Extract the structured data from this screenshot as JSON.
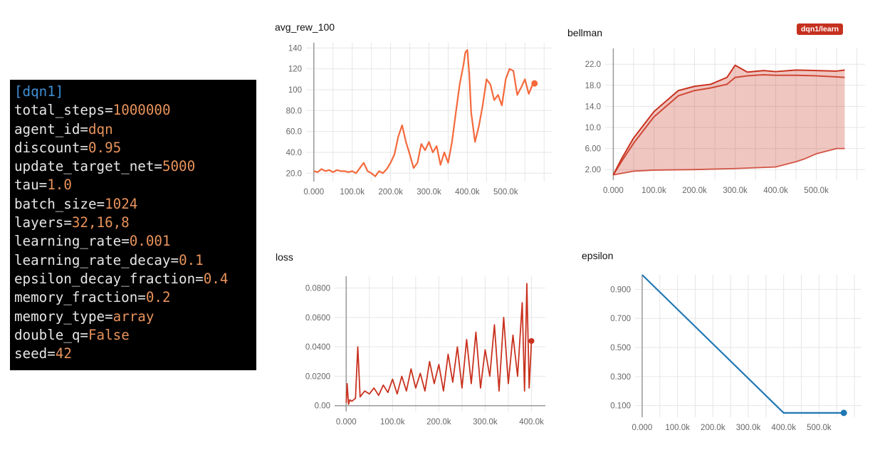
{
  "config": {
    "section": "[dqn1]",
    "params": [
      {
        "key": "total_steps",
        "value": "1000000"
      },
      {
        "key": "agent_id",
        "value": "dqn"
      },
      {
        "key": "discount",
        "value": "0.95"
      },
      {
        "key": "update_target_net",
        "value": "5000"
      },
      {
        "key": "tau",
        "value": "1.0"
      },
      {
        "key": "batch_size",
        "value": "1024"
      },
      {
        "key": "layers",
        "value": "32,16,8"
      },
      {
        "key": "learning_rate",
        "value": "0.001"
      },
      {
        "key": "learning_rate_decay",
        "value": "0.1"
      },
      {
        "key": "epsilon_decay_fraction",
        "value": "0.4"
      },
      {
        "key": "memory_fraction",
        "value": "0.2"
      },
      {
        "key": "memory_type",
        "value": "array"
      },
      {
        "key": "double_q",
        "value": "False"
      },
      {
        "key": "seed",
        "value": "42"
      }
    ]
  },
  "run_tag": "dqn1/learn",
  "colors": {
    "reward": "#f4693c",
    "bellman": "#c9321f",
    "loss": "#c9321f",
    "epsilon": "#1f77b4",
    "tag_bg": "#c5311f"
  },
  "chart_data": [
    {
      "id": "avg_rew_100",
      "type": "line",
      "title": "avg_rew_100",
      "xlim": [
        -20000,
        620000
      ],
      "ylim": [
        12,
        145
      ],
      "xticks": [
        0,
        100000,
        200000,
        300000,
        400000,
        500000
      ],
      "xticklabels": [
        "0.000",
        "100.0k",
        "200.0k",
        "300.0k",
        "400.0k",
        "500.0k"
      ],
      "yticks": [
        20,
        40,
        60,
        80,
        100,
        120,
        140
      ],
      "yticklabels": [
        "20.0",
        "40.0",
        "60.0",
        "80.0",
        "100",
        "120",
        "140"
      ],
      "series": [
        {
          "x": [
            0,
            10000,
            20000,
            30000,
            40000,
            50000,
            60000,
            70000,
            80000,
            90000,
            100000,
            110000,
            120000,
            130000,
            140000,
            150000,
            160000,
            170000,
            180000,
            190000,
            200000,
            210000,
            220000,
            230000,
            240000,
            250000,
            260000,
            270000,
            280000,
            290000,
            300000,
            310000,
            320000,
            330000,
            340000,
            350000,
            360000,
            370000,
            380000,
            390000,
            395000,
            400000,
            405000,
            410000,
            420000,
            430000,
            440000,
            450000,
            460000,
            470000,
            480000,
            490000,
            500000,
            510000,
            520000,
            530000,
            540000,
            550000,
            560000,
            570000,
            575000
          ],
          "y": [
            22,
            21,
            24,
            22,
            23,
            21,
            23,
            22,
            22,
            21,
            22,
            20,
            25,
            30,
            22,
            20,
            17,
            22,
            20,
            24,
            30,
            38,
            55,
            66,
            50,
            38,
            25,
            30,
            48,
            42,
            50,
            40,
            46,
            28,
            40,
            30,
            50,
            78,
            105,
            124,
            136,
            138,
            115,
            78,
            50,
            65,
            85,
            110,
            105,
            90,
            95,
            85,
            110,
            120,
            118,
            95,
            102,
            110,
            96,
            105,
            106
          ]
        }
      ]
    },
    {
      "id": "bellman",
      "type": "line",
      "title": "bellman",
      "xlim": [
        -20000,
        620000
      ],
      "ylim": [
        0,
        25
      ],
      "xticks": [
        0,
        100000,
        200000,
        300000,
        400000,
        500000
      ],
      "xticklabels": [
        "0.000",
        "100.0k",
        "200.0k",
        "300.0k",
        "400.0k",
        "500.0k"
      ],
      "yticks": [
        2,
        6,
        10,
        14,
        18,
        22
      ],
      "yticklabels": [
        "2.00",
        "6.00",
        "10.0",
        "14.0",
        "18.0",
        "22.0"
      ],
      "series": [
        {
          "name": "max",
          "x": [
            0,
            20000,
            50000,
            80000,
            100000,
            130000,
            160000,
            200000,
            240000,
            280000,
            300000,
            330000,
            370000,
            400000,
            450000,
            500000,
            550000,
            570000
          ],
          "y": [
            1,
            4,
            8,
            11,
            13,
            15,
            17,
            17.8,
            18.2,
            19.5,
            21.8,
            20.5,
            20.8,
            20.6,
            20.9,
            20.8,
            20.7,
            20.9
          ]
        },
        {
          "name": "mean",
          "x": [
            0,
            20000,
            50000,
            80000,
            100000,
            130000,
            160000,
            200000,
            240000,
            280000,
            300000,
            330000,
            370000,
            400000,
            450000,
            500000,
            550000,
            570000
          ],
          "y": [
            1,
            3.5,
            7,
            10,
            12,
            14,
            16,
            17,
            17.5,
            18.2,
            19.5,
            19.8,
            20,
            19.9,
            19.9,
            19.8,
            19.6,
            19.5
          ]
        },
        {
          "name": "min",
          "x": [
            0,
            50000,
            100000,
            200000,
            300000,
            400000,
            450000,
            470000,
            500000,
            550000,
            570000
          ],
          "y": [
            1,
            1.7,
            1.9,
            2.0,
            2.2,
            2.5,
            3.5,
            4,
            5,
            6,
            6
          ]
        }
      ]
    },
    {
      "id": "loss",
      "type": "line",
      "title": "loss",
      "xlim": [
        -25000,
        430000
      ],
      "ylim": [
        -0.004,
        0.088
      ],
      "xticks": [
        0,
        100000,
        200000,
        300000,
        400000
      ],
      "xticklabels": [
        "0.000",
        "100.0k",
        "200.0k",
        "300.0k",
        "400.0k"
      ],
      "yticks": [
        0,
        0.02,
        0.04,
        0.06,
        0.08
      ],
      "yticklabels": [
        "0.00",
        "0.0200",
        "0.0400",
        "0.0600",
        "0.0800"
      ],
      "series": [
        {
          "x": [
            0,
            2000,
            5000,
            8000,
            12000,
            20000,
            25000,
            30000,
            40000,
            50000,
            60000,
            70000,
            80000,
            90000,
            100000,
            110000,
            120000,
            130000,
            140000,
            150000,
            160000,
            170000,
            180000,
            190000,
            200000,
            210000,
            220000,
            230000,
            240000,
            250000,
            260000,
            270000,
            280000,
            290000,
            300000,
            310000,
            320000,
            330000,
            340000,
            350000,
            360000,
            370000,
            380000,
            385000,
            390000,
            395000,
            400000
          ],
          "y": [
            0.002,
            0.015,
            0.001,
            0.004,
            0.003,
            0.005,
            0.04,
            0.006,
            0.01,
            0.008,
            0.012,
            0.007,
            0.014,
            0.009,
            0.018,
            0.008,
            0.02,
            0.01,
            0.025,
            0.012,
            0.022,
            0.01,
            0.03,
            0.015,
            0.028,
            0.01,
            0.035,
            0.016,
            0.04,
            0.012,
            0.045,
            0.015,
            0.05,
            0.012,
            0.038,
            0.02,
            0.055,
            0.01,
            0.06,
            0.015,
            0.048,
            0.02,
            0.07,
            0.01,
            0.083,
            0.012,
            0.044
          ]
        }
      ]
    },
    {
      "id": "epsilon",
      "type": "line",
      "title": "epsilon",
      "xlim": [
        -20000,
        620000
      ],
      "ylim": [
        0.02,
        1.0
      ],
      "xticks": [
        0,
        100000,
        200000,
        300000,
        400000,
        500000
      ],
      "xticklabels": [
        "0.000",
        "100.0k",
        "200.0k",
        "300.0k",
        "400.0k",
        "500.0k"
      ],
      "yticks": [
        0.1,
        0.3,
        0.5,
        0.7,
        0.9
      ],
      "yticklabels": [
        "0.100",
        "0.300",
        "0.500",
        "0.700",
        "0.900"
      ],
      "series": [
        {
          "x": [
            0,
            400000,
            570000
          ],
          "y": [
            1.0,
            0.05,
            0.05
          ]
        }
      ]
    }
  ]
}
